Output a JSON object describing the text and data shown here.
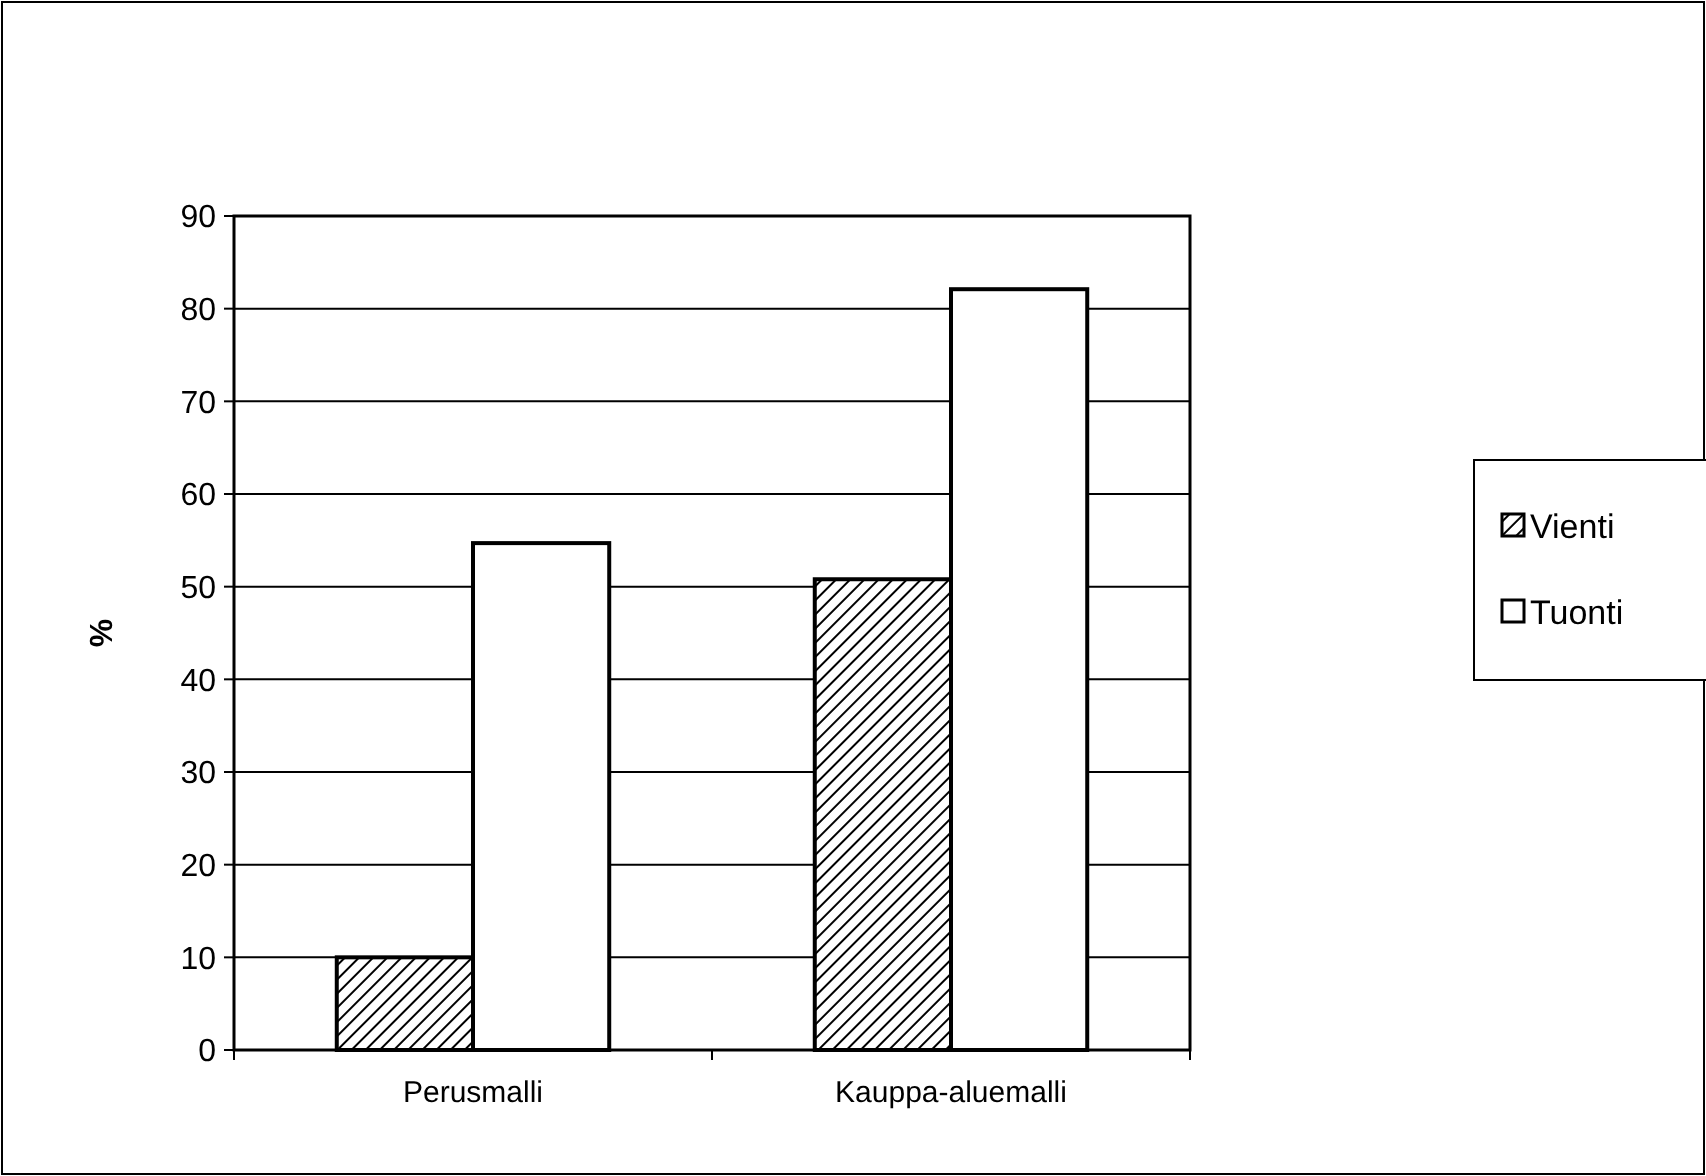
{
  "chart_data": {
    "type": "bar",
    "ylabel": "%",
    "categories": [
      "Perusmalli",
      "Kauppa-aluemalli"
    ],
    "series": [
      {
        "name": "Vienti",
        "color": "#000000",
        "values": [
          10,
          50.8
        ]
      },
      {
        "name": "Tuonti",
        "color": "#ffffff",
        "values": [
          54.7,
          82.1
        ]
      }
    ],
    "ylim": [
      0,
      90
    ],
    "yticks": [
      0,
      10,
      20,
      30,
      40,
      50,
      60,
      70,
      80,
      90
    ],
    "grid": "y",
    "legend": "right"
  }
}
